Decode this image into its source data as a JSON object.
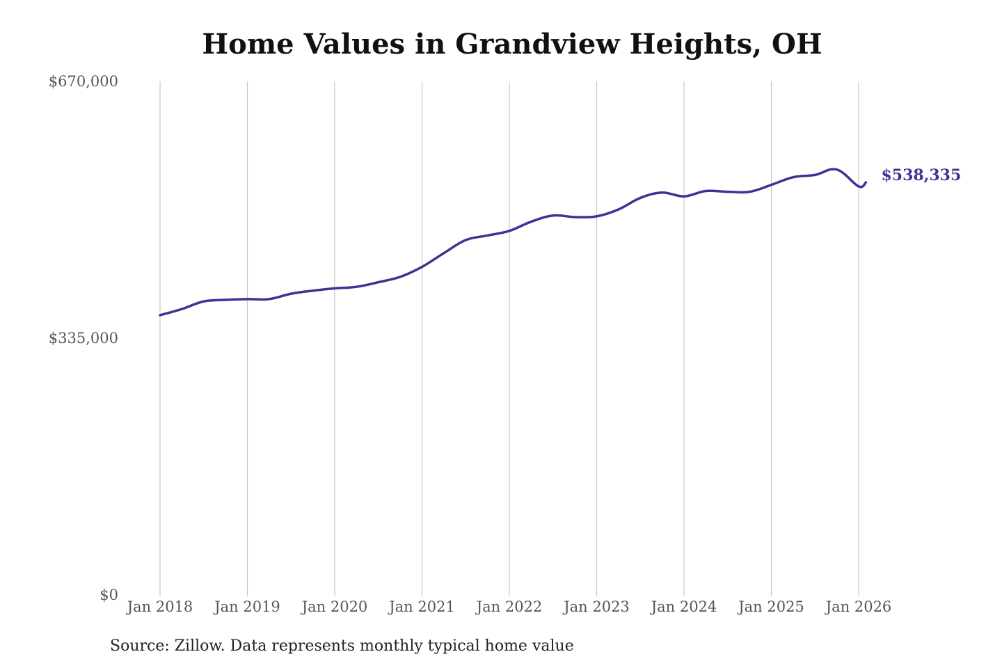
{
  "chart_data": {
    "type": "line",
    "title": "Home Values in Grandview Heights, OH",
    "source": "Source: Zillow. Data represents monthly typical home value",
    "xlabel": "",
    "ylabel": "",
    "y_ticks": [
      "$0",
      "$335,000",
      "$670,000"
    ],
    "ylim": [
      0,
      670000
    ],
    "x_ticks": [
      "Jan 2018",
      "Jan 2019",
      "Jan 2020",
      "Jan 2021",
      "Jan 2022",
      "Jan 2023",
      "Jan 2024",
      "Jan 2025",
      "Jan 2026"
    ],
    "vertical_grid": true,
    "horizontal_grid": false,
    "line_color": "#3b3494",
    "end_label": "$538,335",
    "series": [
      {
        "x": [
          "2018-01",
          "2018-04",
          "2018-07",
          "2018-10",
          "2019-01",
          "2019-04",
          "2019-07",
          "2019-10",
          "2020-01",
          "2020-04",
          "2020-07",
          "2020-10",
          "2021-01",
          "2021-04",
          "2021-07",
          "2021-10",
          "2022-01",
          "2022-04",
          "2022-07",
          "2022-10",
          "2023-01",
          "2023-04",
          "2023-07",
          "2023-10",
          "2024-01",
          "2024-04",
          "2024-07",
          "2024-10",
          "2025-01",
          "2025-04",
          "2025-07",
          "2025-10",
          "2026-01",
          "2026-02"
        ],
        "values": [
          365000,
          373000,
          383000,
          385000,
          386000,
          386000,
          393000,
          397000,
          400000,
          402000,
          408000,
          415000,
          428000,
          446000,
          463000,
          469000,
          475000,
          487000,
          495000,
          493000,
          494000,
          503000,
          518000,
          525000,
          520000,
          527000,
          526000,
          526000,
          535000,
          545000,
          548000,
          555000,
          533000,
          538335
        ]
      }
    ]
  }
}
